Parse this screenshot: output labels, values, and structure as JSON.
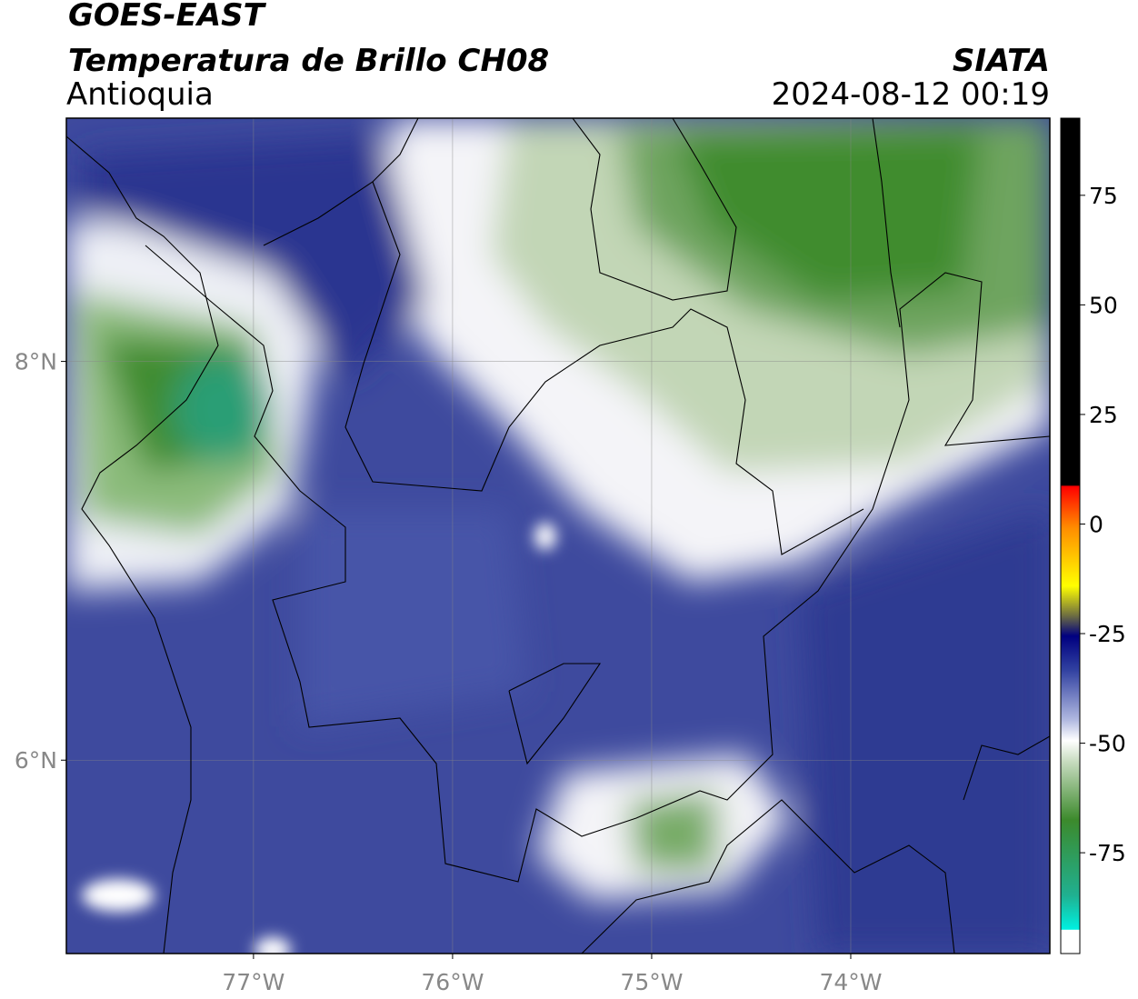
{
  "header": {
    "title": "GOES-EAST",
    "subtitle": "Temperatura de Brillo CH08",
    "region": "Antioquia",
    "source": "SIATA",
    "datetime": "2024-08-12 00:19"
  },
  "map": {
    "xlim": [
      -77.94,
      -73.0
    ],
    "ylim": [
      5.03,
      9.22
    ],
    "xticks": [
      {
        "value": -77,
        "label": "77°W"
      },
      {
        "value": -76,
        "label": "76°W"
      },
      {
        "value": -75,
        "label": "75°W"
      },
      {
        "value": -74,
        "label": "74°W"
      }
    ],
    "yticks": [
      {
        "value": 6,
        "label": "6°N"
      },
      {
        "value": 8,
        "label": "8°N"
      }
    ],
    "grid": true
  },
  "colorbar": {
    "lim": [
      -98,
      92.6
    ],
    "ticks": [
      75,
      50,
      25,
      0,
      -25,
      -50,
      -75
    ]
  }
}
